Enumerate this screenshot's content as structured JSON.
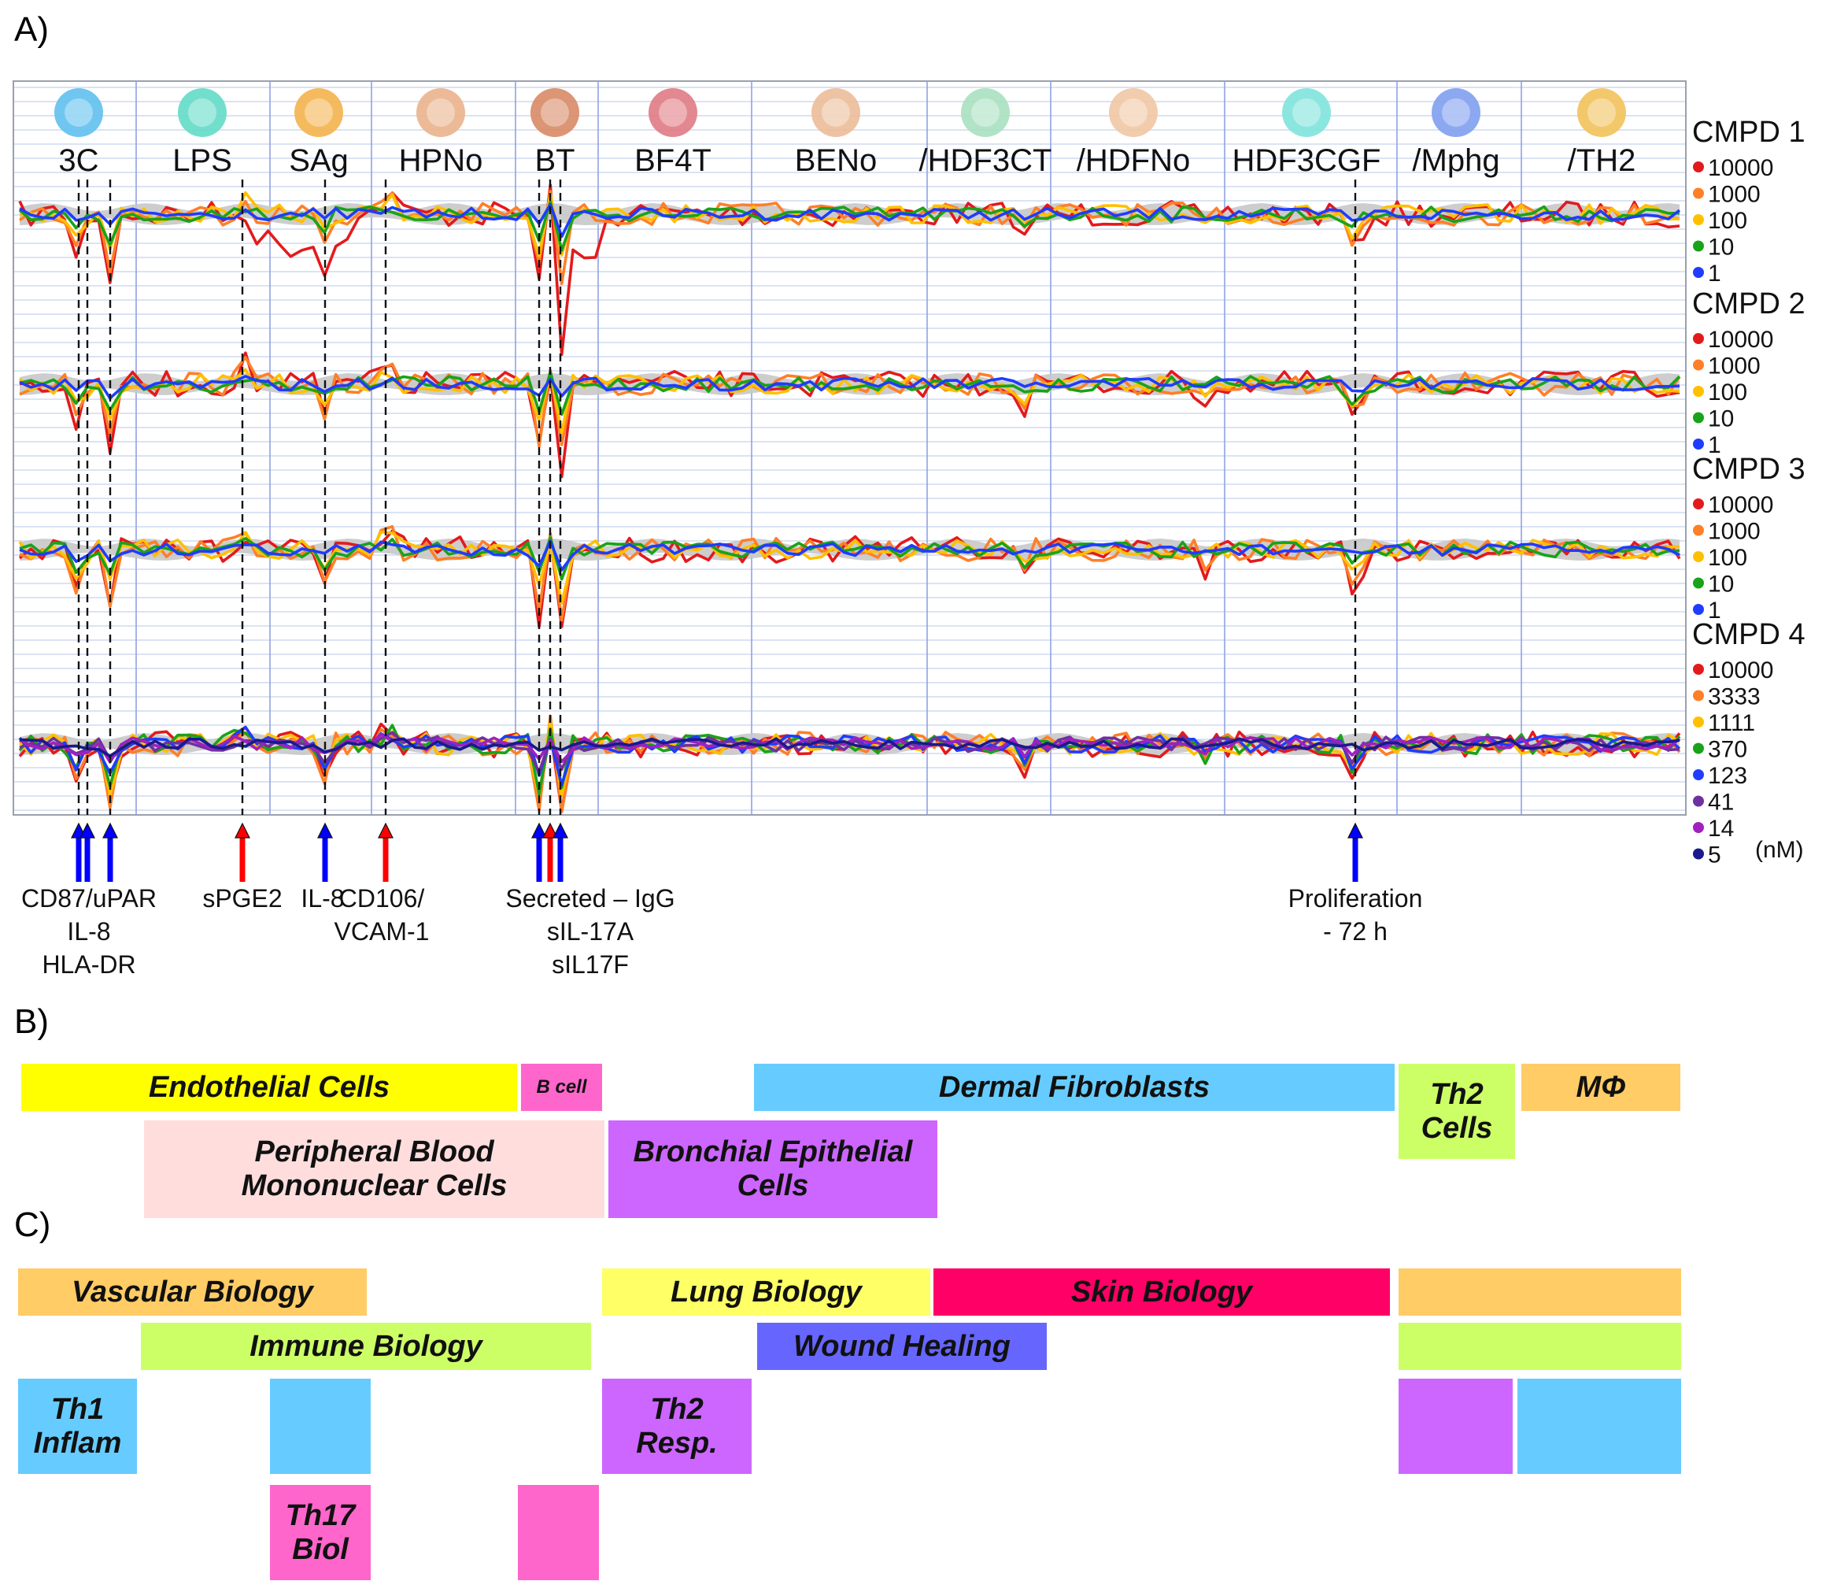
{
  "panel_labels": {
    "a": "A)",
    "b": "B)",
    "c": "C)"
  },
  "colors": {
    "red": "#e31a1c",
    "orange": "#ff7f27",
    "yellow": "#ffc000",
    "green": "#19a319",
    "blue": "#1f3cff",
    "purple": "#7030a0",
    "magenta": "#a020c0",
    "navy": "#1a1a8c",
    "gray_band": "#c8c8c8",
    "grid_line": "#c5d2ee",
    "system_divider": "#8fa2e6",
    "up_arrow_red": "#ff0000",
    "up_arrow_blue": "#0000ff"
  },
  "chart_data": {
    "type": "line",
    "title": "",
    "systems": [
      "3C",
      "LPS",
      "SAg",
      "HPNo",
      "BT",
      "BF4T",
      "BENo",
      "/HDF3CT",
      "/HDFNo",
      "HDF3CGF",
      "/Mphg",
      "/TH2"
    ],
    "system_icons": [
      "endothelial-cell-icon",
      "pbmc-icon",
      "pbmc-icon",
      "endothelial-cell-icon",
      "b-cell-icon",
      "epithelial-cell-icon",
      "epithelial-cell-icon",
      "fibroblast-icon",
      "fibroblast-icon",
      "fibroblast-icon",
      "macrophage-icon",
      "th2-cell-icon"
    ],
    "compounds": [
      {
        "name": "CMPD 1",
        "concentrations": [
          "10000",
          "1000",
          "100",
          "10",
          "1"
        ],
        "colors": [
          "#e31a1c",
          "#ff7f27",
          "#ffc000",
          "#19a319",
          "#1f3cff"
        ]
      },
      {
        "name": "CMPD 2",
        "concentrations": [
          "10000",
          "1000",
          "100",
          "10",
          "1"
        ],
        "colors": [
          "#e31a1c",
          "#ff7f27",
          "#ffc000",
          "#19a319",
          "#1f3cff"
        ]
      },
      {
        "name": "CMPD 3",
        "concentrations": [
          "10000",
          "1000",
          "100",
          "10",
          "1"
        ],
        "colors": [
          "#e31a1c",
          "#ff7f27",
          "#ffc000",
          "#19a319",
          "#1f3cff"
        ]
      },
      {
        "name": "CMPD 4",
        "concentrations": [
          "10000",
          "3333",
          "1111",
          "370",
          "123",
          "41",
          "14",
          "5"
        ],
        "colors": [
          "#e31a1c",
          "#ff7f27",
          "#ffc000",
          "#19a319",
          "#1f3cff",
          "#7030a0",
          "#a020c0",
          "#1a1a8c"
        ],
        "unit": "(nM)"
      }
    ],
    "annotations": [
      {
        "label": "CD87/uPAR\nIL-8\nHLA-DR",
        "arrows": [
          "blue",
          "blue",
          "blue"
        ]
      },
      {
        "label": "sPGE2",
        "arrows": [
          "red"
        ]
      },
      {
        "label": "IL-8",
        "arrows": [
          "blue"
        ]
      },
      {
        "label": "CD106/\nVCAM-1",
        "arrows": [
          "red"
        ]
      },
      {
        "label": "Secreted – IgG\nsIL-17A\nsIL17F",
        "arrows": [
          "blue",
          "red",
          "blue"
        ]
      },
      {
        "label": "Proliferation\n- 72 h",
        "arrows": [
          "blue"
        ]
      }
    ]
  },
  "cell_types": [
    {
      "label": "Endothelial Cells",
      "color": "#ffff00"
    },
    {
      "label": "B cell",
      "color": "#ff66cc"
    },
    {
      "label": "Dermal Fibroblasts",
      "color": "#66ccff"
    },
    {
      "label": "Th2\nCells",
      "color": "#ccff66"
    },
    {
      "label": "MΦ",
      "color": "#ffcc66"
    },
    {
      "label": "Peripheral Blood\nMononuclear Cells",
      "color": "#ffdddd"
    },
    {
      "label": "Bronchial Epithelial\nCells",
      "color": "#cc66ff"
    }
  ],
  "disease_areas": [
    {
      "label": "Vascular Biology",
      "color": "#ffcc66"
    },
    {
      "label": "Lung Biology",
      "color": "#ffff66"
    },
    {
      "label": "Skin Biology",
      "color": "#ff0066"
    },
    {
      "label": "",
      "color": "#ffcc66"
    },
    {
      "label": "Immune Biology",
      "color": "#ccff66"
    },
    {
      "label": "Wound Healing",
      "color": "#6666ff"
    },
    {
      "label": "",
      "color": "#ccff66"
    },
    {
      "label": "Th1\nInflam",
      "color": "#66ccff"
    },
    {
      "label": "",
      "color": "#66ccff"
    },
    {
      "label": "Th2\nResp.",
      "color": "#cc66ff"
    },
    {
      "label": "",
      "color": "#cc66ff"
    },
    {
      "label": "",
      "color": "#66ccff"
    },
    {
      "label": "Th17\nBiol",
      "color": "#ff66cc"
    },
    {
      "label": "",
      "color": "#ff66cc"
    }
  ]
}
